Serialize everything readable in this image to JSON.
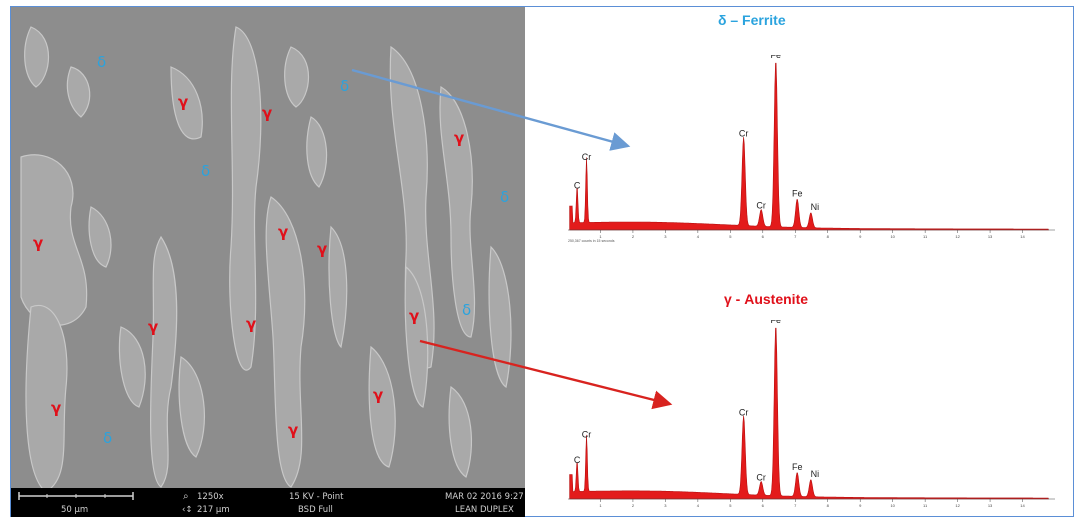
{
  "micrograph": {
    "phase_labels": [
      {
        "symbol": "δ",
        "phase": "delta"
      },
      {
        "symbol": "γ",
        "phase": "gamma"
      },
      {
        "symbol": "γ",
        "phase": "gamma"
      },
      {
        "symbol": "δ",
        "phase": "delta"
      },
      {
        "symbol": "γ",
        "phase": "gamma"
      },
      {
        "symbol": "δ",
        "phase": "delta"
      },
      {
        "symbol": "δ",
        "phase": "delta"
      },
      {
        "symbol": "γ",
        "phase": "gamma"
      },
      {
        "symbol": "γ",
        "phase": "gamma"
      },
      {
        "symbol": "γ",
        "phase": "gamma"
      },
      {
        "symbol": "γ",
        "phase": "gamma"
      },
      {
        "symbol": "γ",
        "phase": "gamma"
      },
      {
        "symbol": "γ",
        "phase": "gamma"
      },
      {
        "symbol": "δ",
        "phase": "delta"
      },
      {
        "symbol": "γ",
        "phase": "gamma"
      },
      {
        "symbol": "γ",
        "phase": "gamma"
      },
      {
        "symbol": "γ",
        "phase": "gamma"
      },
      {
        "symbol": "δ",
        "phase": "delta"
      }
    ],
    "info": {
      "scale": "50 µm",
      "magnification": "1250x",
      "field_width": "217 µm",
      "voltage": "15 KV - Point",
      "detector": "BSD Full",
      "date": "MAR 02 2016 9:27",
      "sample": "LEAN DUPLEX"
    }
  },
  "colors": {
    "delta": "#2aa3de",
    "gamma": "#e0101a",
    "spectrum_fill": "#e31b1b"
  },
  "spectra": [
    {
      "title": "δ – Ferrite",
      "phase": "delta",
      "count_note": "250,367 counts in 15 seconds",
      "peaks": [
        {
          "label": "C",
          "energy": 0.28,
          "height": 0.22
        },
        {
          "label": "Cr",
          "energy": 0.57,
          "height": 0.39
        },
        {
          "label": "Cr",
          "energy": 5.41,
          "height": 0.53
        },
        {
          "label": "Cr",
          "energy": 5.95,
          "height": 0.1
        },
        {
          "label": "Fe",
          "energy": 6.4,
          "height": 1.0
        },
        {
          "label": "Fe",
          "energy": 7.06,
          "height": 0.17
        },
        {
          "label": "Ni",
          "energy": 7.48,
          "height": 0.09
        }
      ]
    },
    {
      "title": "γ - Austenite",
      "phase": "gamma",
      "count_note": "",
      "peaks": [
        {
          "label": "C",
          "energy": 0.28,
          "height": 0.18
        },
        {
          "label": "Cr",
          "energy": 0.57,
          "height": 0.33
        },
        {
          "label": "Cr",
          "energy": 5.41,
          "height": 0.46
        },
        {
          "label": "Cr",
          "energy": 5.95,
          "height": 0.08
        },
        {
          "label": "Fe",
          "energy": 6.4,
          "height": 1.0
        },
        {
          "label": "Fe",
          "energy": 7.06,
          "height": 0.14
        },
        {
          "label": "Ni",
          "energy": 7.48,
          "height": 0.1
        }
      ]
    }
  ],
  "energy_axis": {
    "min": 0,
    "max": 15,
    "ticks": [
      "1",
      "2",
      "3",
      "4",
      "5",
      "6",
      "7",
      "8",
      "9",
      "10",
      "11",
      "12",
      "13",
      "14"
    ]
  }
}
